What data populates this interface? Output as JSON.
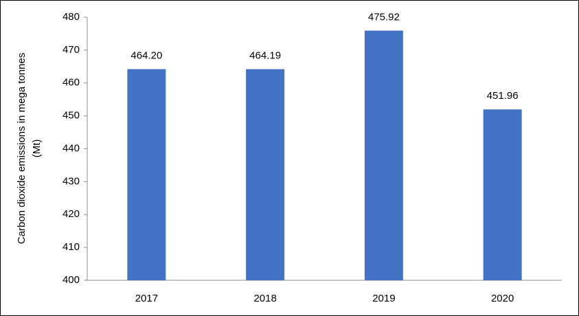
{
  "chart_data": {
    "type": "bar",
    "ylabel": [
      "Carbon dioxide emissions in mega tonnes",
      "(Mt)"
    ],
    "categories": [
      "2017",
      "2018",
      "2019",
      "2020"
    ],
    "values": [
      464.2,
      464.19,
      475.92,
      451.96
    ],
    "value_labels": [
      "464.20",
      "464.19",
      "475.92",
      "451.96"
    ],
    "color": "#4472c4",
    "ylim": [
      400,
      480
    ],
    "yticks": [
      400,
      410,
      420,
      430,
      440,
      450,
      460,
      470,
      480
    ],
    "grid": false
  }
}
